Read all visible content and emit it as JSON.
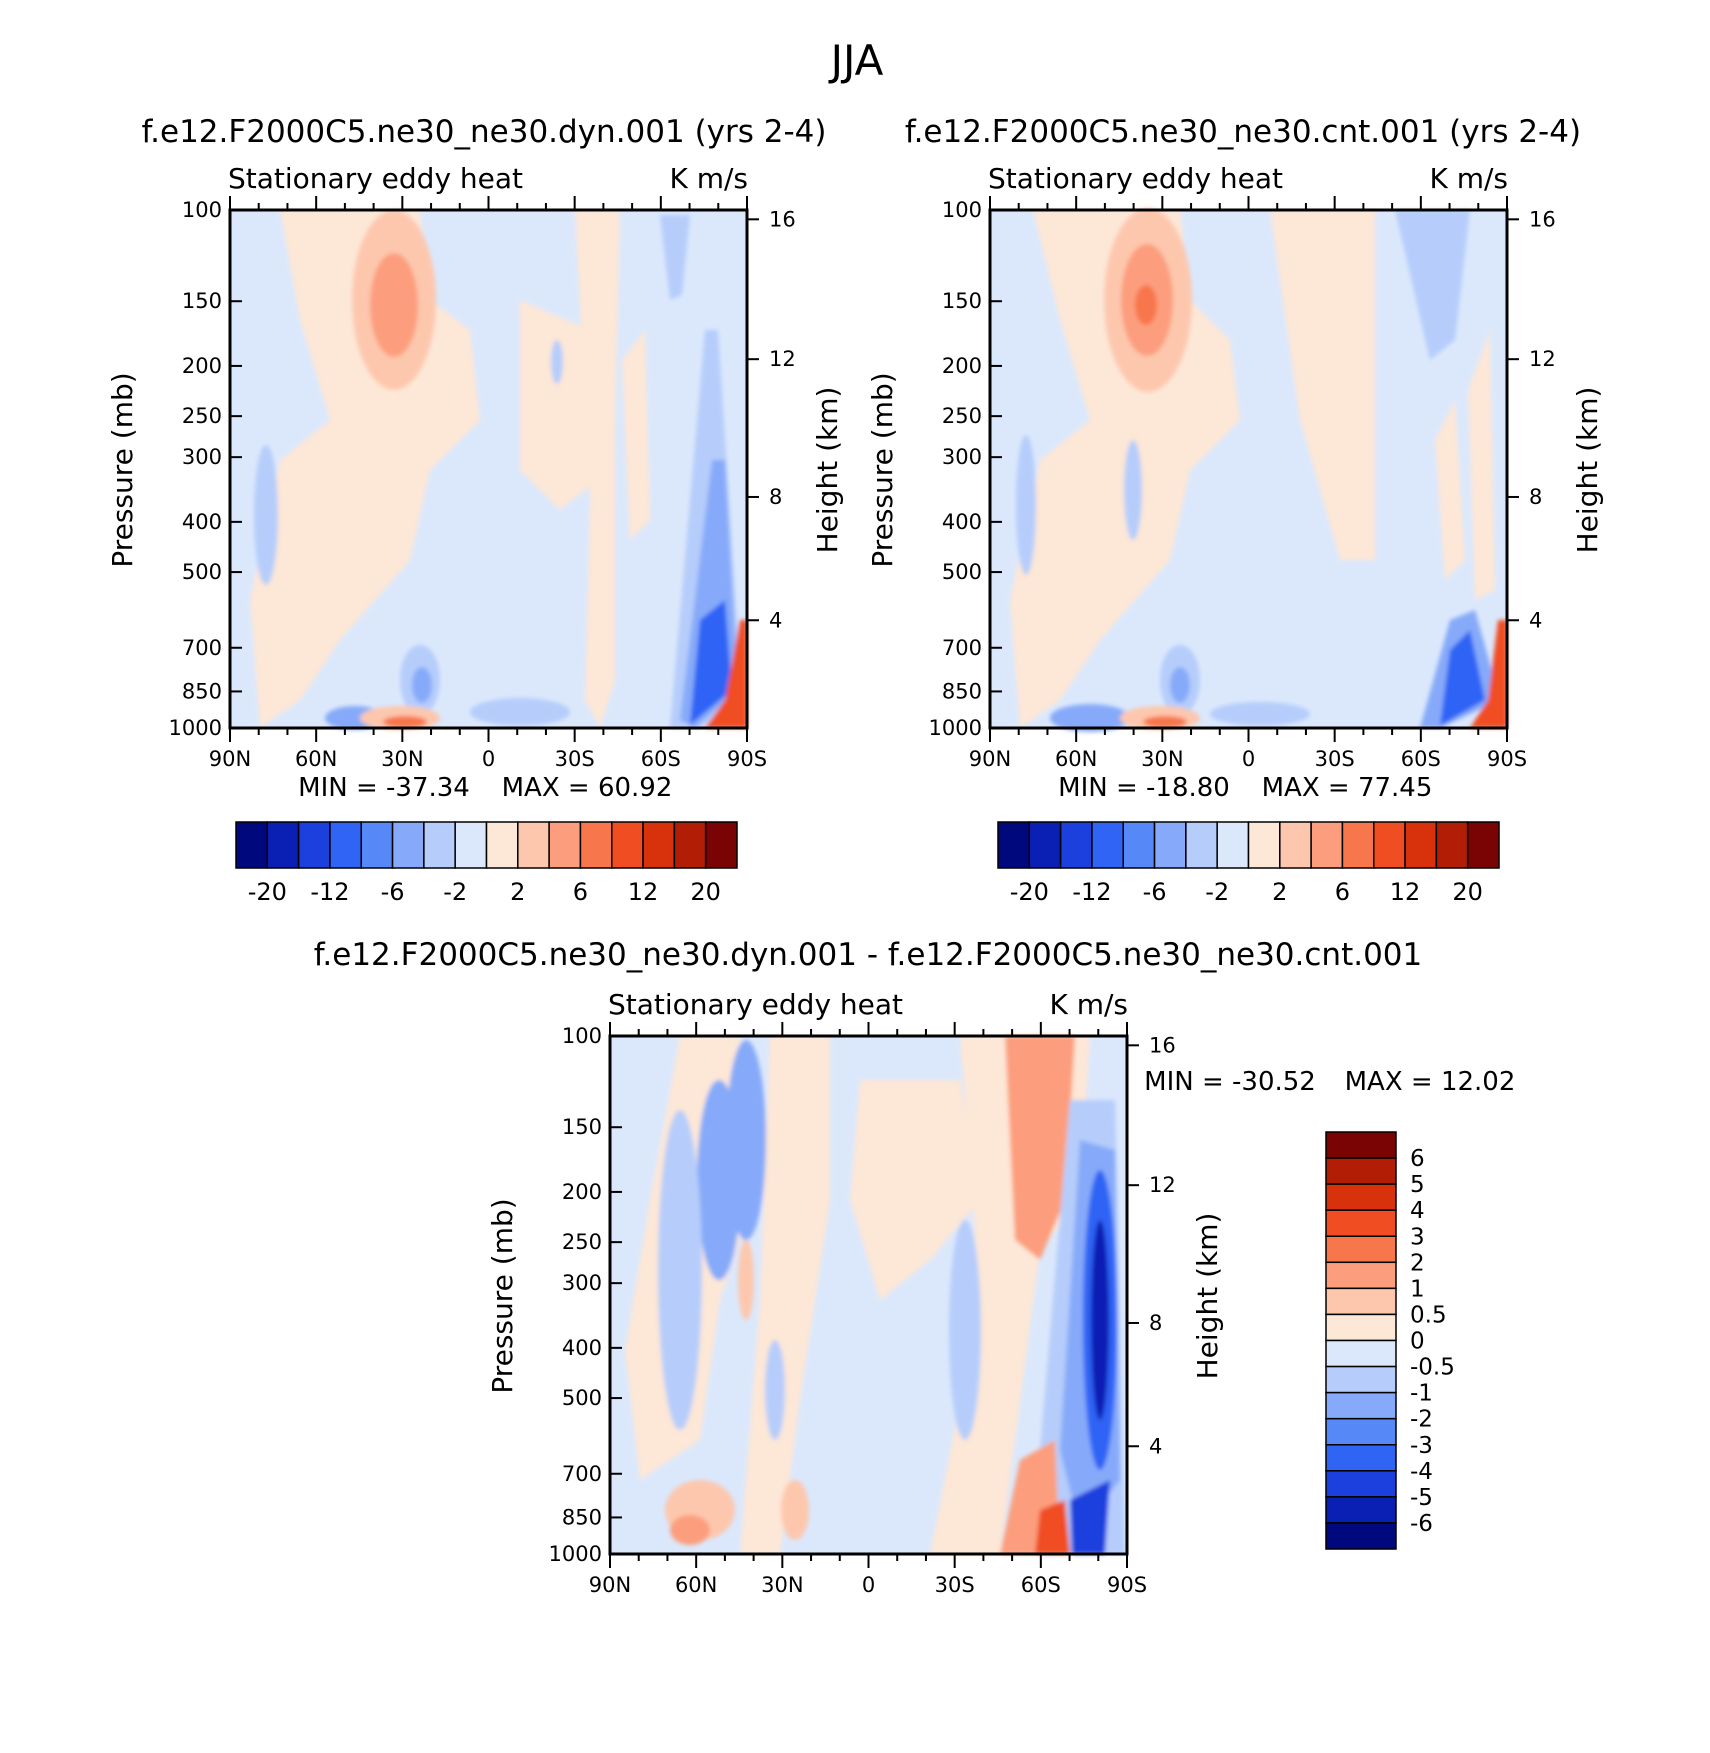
{
  "page_title": "JJA",
  "colors": {
    "dyn_cnt_levels": [
      "#00087e",
      "#0a1fb4",
      "#1b40de",
      "#2f64f5",
      "#5688f7",
      "#86aaf9",
      "#b6cdfb",
      "#dbe8fc",
      "#fde7d7",
      "#fdc7ad",
      "#fc9e7d",
      "#f8764c",
      "#f04d22",
      "#d8320c",
      "#b21d05",
      "#7a0403"
    ],
    "diff_levels": [
      "#00087e",
      "#0a1fb4",
      "#1b40de",
      "#2f64f5",
      "#5688f7",
      "#86aaf9",
      "#b6cdfb",
      "#dbe8fc",
      "#fde7d7",
      "#fdc7ad",
      "#fc9e7d",
      "#f8764c",
      "#f04d22",
      "#d8320c",
      "#b21d05",
      "#7a0403"
    ]
  },
  "panels": {
    "dyn": {
      "title": "f.e12.F2000C5.ne30_ne30.dyn.001 (yrs 2-4)",
      "subtitle_left": "Stationary eddy heat",
      "subtitle_right": "K m/s",
      "min_label": "MIN = -37.34",
      "max_label": "MAX = 60.92"
    },
    "cnt": {
      "title": "f.e12.F2000C5.ne30_ne30.cnt.001 (yrs 2-4)",
      "subtitle_left": "Stationary eddy heat",
      "subtitle_right": "K m/s",
      "min_label": "MIN = -18.80",
      "max_label": "MAX = 77.45"
    },
    "diff": {
      "title": "f.e12.F2000C5.ne30_ne30.dyn.001 - f.e12.F2000C5.ne30_ne30.cnt.001",
      "subtitle_left": "Stationary eddy heat",
      "subtitle_right": "K m/s",
      "min_label": "MIN = -30.52",
      "max_label": "MAX = 12.02"
    }
  },
  "axes": {
    "ylabel_left": "Pressure (mb)",
    "ylabel_right": "Height (km)",
    "pressure_ticks": [
      "100",
      "150",
      "200",
      "250",
      "300",
      "400",
      "500",
      "700",
      "850",
      "1000"
    ],
    "height_ticks": [
      "16",
      "12",
      "8",
      "4"
    ],
    "lat_ticks": [
      "90N",
      "60N",
      "30N",
      "0",
      "30S",
      "60S",
      "90S"
    ]
  },
  "colorbars": {
    "main_labels": [
      "-20",
      "-12",
      "-6",
      "-2",
      "2",
      "6",
      "12",
      "20"
    ],
    "diff_labels": [
      "6",
      "5",
      "4",
      "3",
      "2",
      "1",
      "0.5",
      "0",
      "-0.5",
      "-1",
      "-2",
      "-3",
      "-4",
      "-5",
      "-6"
    ]
  },
  "chart_data": [
    {
      "type": "heatmap",
      "title": "f.e12.F2000C5.ne30_ne30.dyn.001 (yrs 2-4)",
      "variable": "Stationary eddy heat",
      "units": "K m/s",
      "xlabel": "",
      "ylabel": "Pressure (mb)",
      "ylabel_right": "Height (km)",
      "xlim": [
        "90N",
        "90S"
      ],
      "ylim": [
        1000,
        100
      ],
      "min": -37.34,
      "max": 60.92,
      "contour_levels": [
        -20,
        -16,
        -12,
        -8,
        -6,
        -4,
        -2,
        0,
        2,
        4,
        6,
        8,
        12,
        16,
        20
      ],
      "features": [
        {
          "lat": 33,
          "p": 150,
          "value": 4,
          "sign": "positive"
        },
        {
          "lat": -80,
          "p": 900,
          "value": -20,
          "sign": "negative"
        },
        {
          "lat": -84,
          "p": 980,
          "value": 20,
          "sign": "positive"
        },
        {
          "lat": 30,
          "p": 1000,
          "value": 6,
          "sign": "positive"
        },
        {
          "lat": 40,
          "p": 1000,
          "value": -6,
          "sign": "negative"
        }
      ]
    },
    {
      "type": "heatmap",
      "title": "f.e12.F2000C5.ne30_ne30.cnt.001 (yrs 2-4)",
      "variable": "Stationary eddy heat",
      "units": "K m/s",
      "xlabel": "",
      "ylabel": "Pressure (mb)",
      "ylabel_right": "Height (km)",
      "xlim": [
        "90N",
        "90S"
      ],
      "ylim": [
        1000,
        100
      ],
      "min": -18.8,
      "max": 77.45,
      "contour_levels": [
        -20,
        -16,
        -12,
        -8,
        -6,
        -4,
        -2,
        0,
        2,
        4,
        6,
        8,
        12,
        16,
        20
      ],
      "features": [
        {
          "lat": 33,
          "p": 150,
          "value": 6,
          "sign": "positive"
        },
        {
          "lat": -75,
          "p": 850,
          "value": -12,
          "sign": "negative"
        },
        {
          "lat": -84,
          "p": 980,
          "value": 20,
          "sign": "positive"
        },
        {
          "lat": 33,
          "p": 1000,
          "value": 6,
          "sign": "positive"
        },
        {
          "lat": 45,
          "p": 1000,
          "value": -6,
          "sign": "negative"
        }
      ]
    },
    {
      "type": "heatmap",
      "title": "f.e12.F2000C5.ne30_ne30.dyn.001 - f.e12.F2000C5.ne30_ne30.cnt.001",
      "variable": "Stationary eddy heat",
      "units": "K m/s",
      "xlabel": "",
      "ylabel": "Pressure (mb)",
      "ylabel_right": "Height (km)",
      "xlim": [
        "90N",
        "90S"
      ],
      "ylim": [
        1000,
        100
      ],
      "min": -30.52,
      "max": 12.02,
      "contour_levels": [
        -6,
        -5,
        -4,
        -3,
        -2,
        -1,
        -0.5,
        0,
        0.5,
        1,
        2,
        3,
        4,
        5,
        6
      ],
      "features": [
        {
          "lat": -78,
          "p": 400,
          "value": -6,
          "sign": "negative"
        },
        {
          "lat": -62,
          "p": 150,
          "value": 2,
          "sign": "positive"
        },
        {
          "lat": 40,
          "p": 180,
          "value": -2,
          "sign": "negative"
        },
        {
          "lat": -65,
          "p": 980,
          "value": 6,
          "sign": "positive"
        },
        {
          "lat": 60,
          "p": 980,
          "value": 2,
          "sign": "positive"
        }
      ]
    }
  ]
}
